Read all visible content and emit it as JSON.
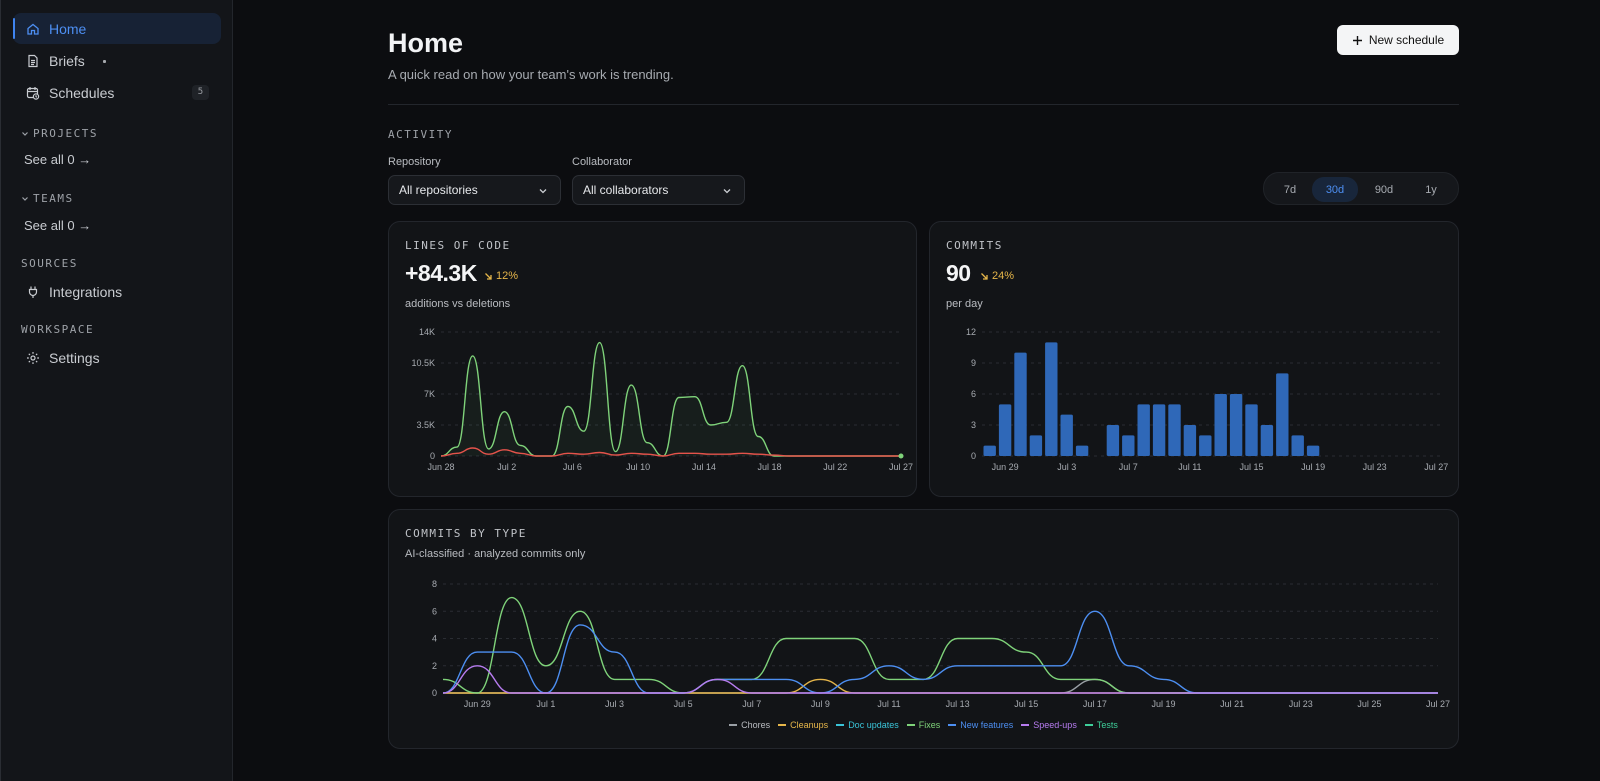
{
  "sidebar": {
    "home": "Home",
    "briefs": "Briefs",
    "schedules": "Schedules",
    "schedules_count": "5",
    "projects_label": "PROJECTS",
    "projects_see_all": "See all 0 →",
    "teams_label": "TEAMS",
    "teams_see_all": "See all 0 →",
    "sources_label": "SOURCES",
    "integrations": "Integrations",
    "workspace_label": "WORKSPACE",
    "settings": "Settings"
  },
  "header": {
    "title": "Home",
    "subtitle": "A quick read on how your team's work is trending.",
    "new_schedule": "New schedule"
  },
  "activity": {
    "label": "ACTIVITY",
    "repository_label": "Repository",
    "repository_value": "All repositories",
    "collaborator_label": "Collaborator",
    "collaborator_value": "All collaborators",
    "ranges": [
      "7d",
      "30d",
      "90d",
      "1y"
    ],
    "active_range": "30d"
  },
  "loc_card": {
    "title": "LINES OF CODE",
    "metric": "+84.3K",
    "delta": "12%",
    "subtitle": "additions vs deletions"
  },
  "commits_card": {
    "title": "COMMITS",
    "metric": "90",
    "delta": "24%",
    "subtitle": "per day"
  },
  "type_card": {
    "title": "COMMITS BY TYPE",
    "subtitle": "AI-classified · analyzed commits only"
  },
  "colors": {
    "accent": "#3f84f0",
    "green": "#7fd37a",
    "red": "#e5534b",
    "bar": "#2f68b8",
    "delta": "#e6b64a"
  },
  "chart_data": [
    {
      "type": "line",
      "title": "LINES OF CODE",
      "ylim": [
        0,
        14000
      ],
      "yticks": [
        "0",
        "3.5K",
        "7K",
        "10.5K",
        "14K"
      ],
      "xticks": [
        "Jun 28",
        "Jul 2",
        "Jul 6",
        "Jul 10",
        "Jul 14",
        "Jul 18",
        "Jul 22",
        "Jul 27"
      ],
      "x": [
        "Jun 28",
        "Jun 29",
        "Jun 30",
        "Jul 1",
        "Jul 2",
        "Jul 3",
        "Jul 4",
        "Jul 5",
        "Jul 6",
        "Jul 7",
        "Jul 8",
        "Jul 9",
        "Jul 10",
        "Jul 11",
        "Jul 12",
        "Jul 13",
        "Jul 14",
        "Jul 15",
        "Jul 16",
        "Jul 17",
        "Jul 18",
        "Jul 19",
        "Jul 20",
        "Jul 21",
        "Jul 22",
        "Jul 23",
        "Jul 24",
        "Jul 25",
        "Jul 26",
        "Jul 27"
      ],
      "series": [
        {
          "name": "additions",
          "color": "#7fd37a",
          "values": [
            0,
            1000,
            11300,
            800,
            5000,
            1200,
            0,
            0,
            5600,
            2800,
            12800,
            500,
            8000,
            1500,
            0,
            6600,
            6700,
            3500,
            3800,
            10200,
            2200,
            0,
            0,
            0,
            0,
            0,
            0,
            0,
            0,
            0
          ]
        },
        {
          "name": "deletions",
          "color": "#e5534b",
          "values": [
            0,
            300,
            900,
            200,
            700,
            300,
            0,
            0,
            300,
            200,
            400,
            100,
            300,
            200,
            0,
            300,
            300,
            200,
            200,
            300,
            200,
            100,
            0,
            0,
            0,
            0,
            0,
            0,
            0,
            0
          ]
        }
      ]
    },
    {
      "type": "bar",
      "title": "COMMITS",
      "ylim": [
        0,
        12
      ],
      "yticks": [
        "0",
        "3",
        "6",
        "9",
        "12"
      ],
      "xticks": [
        "Jun 29",
        "Jul 3",
        "Jul 7",
        "Jul 11",
        "Jul 15",
        "Jul 19",
        "Jul 23",
        "Jul 27"
      ],
      "categories": [
        "Jun 28",
        "Jun 29",
        "Jun 30",
        "Jul 1",
        "Jul 2",
        "Jul 3",
        "Jul 4",
        "Jul 5",
        "Jul 6",
        "Jul 7",
        "Jul 8",
        "Jul 9",
        "Jul 10",
        "Jul 11",
        "Jul 12",
        "Jul 13",
        "Jul 14",
        "Jul 15",
        "Jul 16",
        "Jul 17",
        "Jul 18",
        "Jul 19",
        "Jul 20",
        "Jul 21",
        "Jul 22",
        "Jul 23",
        "Jul 24",
        "Jul 25",
        "Jul 26",
        "Jul 27"
      ],
      "values": [
        1,
        5,
        10,
        2,
        11,
        4,
        1,
        0,
        3,
        2,
        5,
        5,
        5,
        3,
        2,
        6,
        6,
        5,
        3,
        8,
        2,
        1,
        0,
        0,
        0,
        0,
        0,
        0,
        0,
        0
      ]
    },
    {
      "type": "line",
      "title": "COMMITS BY TYPE",
      "ylim": [
        0,
        8
      ],
      "yticks": [
        "0",
        "2",
        "4",
        "6",
        "8"
      ],
      "xticks": [
        "Jun 29",
        "Jul 1",
        "Jul 3",
        "Jul 5",
        "Jul 7",
        "Jul 9",
        "Jul 11",
        "Jul 13",
        "Jul 15",
        "Jul 17",
        "Jul 19",
        "Jul 21",
        "Jul 23",
        "Jul 25",
        "Jul 27"
      ],
      "x": [
        "Jun 28",
        "Jun 29",
        "Jun 30",
        "Jul 1",
        "Jul 2",
        "Jul 3",
        "Jul 4",
        "Jul 5",
        "Jul 6",
        "Jul 7",
        "Jul 8",
        "Jul 9",
        "Jul 10",
        "Jul 11",
        "Jul 12",
        "Jul 13",
        "Jul 14",
        "Jul 15",
        "Jul 16",
        "Jul 17",
        "Jul 18",
        "Jul 19",
        "Jul 20",
        "Jul 21",
        "Jul 22",
        "Jul 23",
        "Jul 24",
        "Jul 25",
        "Jul 26",
        "Jul 27"
      ],
      "series": [
        {
          "name": "Chores",
          "color": "#9aa0a6",
          "values": [
            0,
            0,
            0,
            0,
            0,
            0,
            0,
            0,
            0,
            0,
            0,
            0,
            0,
            0,
            0,
            0,
            0,
            0,
            0,
            1,
            0,
            0,
            0,
            0,
            0,
            0,
            0,
            0,
            0,
            0
          ]
        },
        {
          "name": "Cleanups",
          "color": "#e6b64a",
          "values": [
            0,
            0,
            0,
            0,
            0,
            0,
            0,
            0,
            0,
            0,
            0,
            1,
            0,
            0,
            0,
            0,
            0,
            0,
            0,
            0,
            0,
            0,
            0,
            0,
            0,
            0,
            0,
            0,
            0,
            0
          ]
        },
        {
          "name": "Doc updates",
          "color": "#3ac4d8",
          "values": [
            0,
            0,
            0,
            0,
            0,
            0,
            0,
            0,
            0,
            0,
            0,
            0,
            0,
            0,
            0,
            0,
            0,
            0,
            0,
            0,
            0,
            0,
            0,
            0,
            0,
            0,
            0,
            0,
            0,
            0
          ]
        },
        {
          "name": "Fixes",
          "color": "#7fd37a",
          "values": [
            1,
            0,
            7,
            2,
            6,
            1,
            1,
            0,
            1,
            1,
            4,
            4,
            4,
            1,
            1,
            4,
            4,
            3,
            1,
            1,
            0,
            0,
            0,
            0,
            0,
            0,
            0,
            0,
            0,
            0
          ]
        },
        {
          "name": "New features",
          "color": "#4d8ff2",
          "values": [
            0,
            3,
            3,
            0,
            5,
            3,
            0,
            0,
            1,
            1,
            1,
            0,
            1,
            2,
            1,
            2,
            2,
            2,
            2,
            6,
            2,
            1,
            0,
            0,
            0,
            0,
            0,
            0,
            0,
            0
          ]
        },
        {
          "name": "Speed-ups",
          "color": "#b77cf0",
          "values": [
            0,
            2,
            0,
            0,
            0,
            0,
            0,
            0,
            1,
            0,
            0,
            0,
            0,
            0,
            0,
            0,
            0,
            0,
            0,
            0,
            0,
            0,
            0,
            0,
            0,
            0,
            0,
            0,
            0,
            0
          ]
        },
        {
          "name": "Tests",
          "color": "#3ecf9a",
          "values": [
            0,
            0,
            0,
            0,
            0,
            0,
            0,
            0,
            0,
            0,
            0,
            0,
            0,
            0,
            0,
            0,
            0,
            0,
            0,
            0,
            0,
            0,
            0,
            0,
            0,
            0,
            0,
            0,
            0,
            0
          ]
        }
      ]
    }
  ]
}
